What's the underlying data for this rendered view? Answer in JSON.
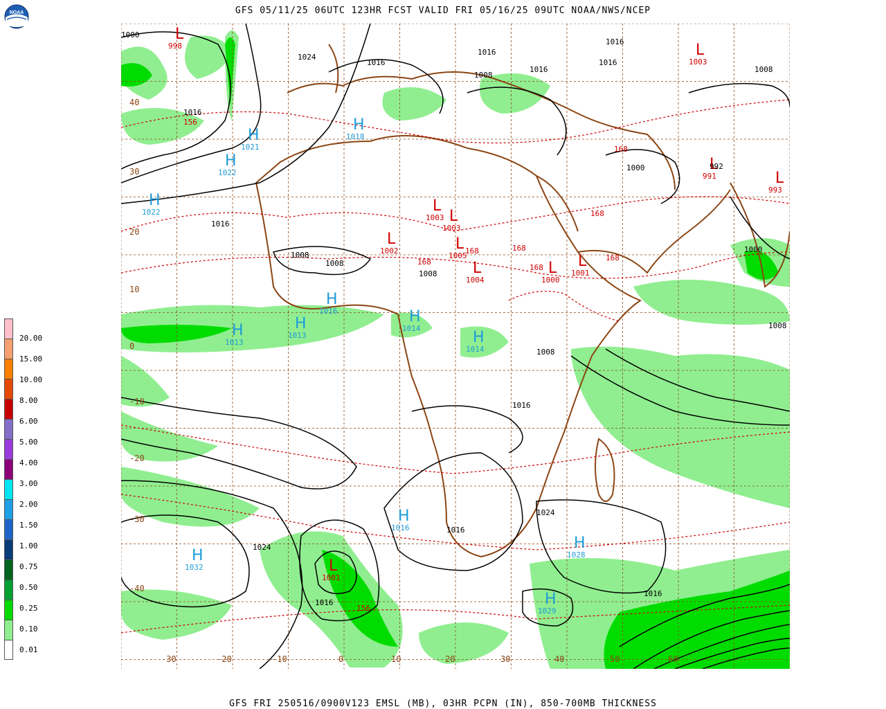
{
  "header": {
    "title": "GFS 05/11/25 06UTC 123HR FCST VALID FRI 05/16/25 09UTC NOAA/NWS/NCEP"
  },
  "footer": {
    "caption": "GFS FRI 250516/0900V123 EMSL (MB), 03HR PCPN (IN), 850-700MB THICKNESS"
  },
  "logo": {
    "text": "NOAA",
    "icon": "noaa-logo"
  },
  "legend": {
    "items": [
      {
        "label": "20.00",
        "color": "#ffc0cb"
      },
      {
        "label": "15.00",
        "color": "#f5a070"
      },
      {
        "label": "10.00",
        "color": "#ff7f00"
      },
      {
        "label": "8.00",
        "color": "#e64a00"
      },
      {
        "label": "6.00",
        "color": "#c80000"
      },
      {
        "label": "5.00",
        "color": "#8470c8"
      },
      {
        "label": "4.00",
        "color": "#9a3cdc"
      },
      {
        "label": "3.00",
        "color": "#8c0078"
      },
      {
        "label": "2.00",
        "color": "#00e6f0"
      },
      {
        "label": "1.50",
        "color": "#1ea0e6"
      },
      {
        "label": "1.00",
        "color": "#1e64c8"
      },
      {
        "label": "0.75",
        "color": "#0a3c78"
      },
      {
        "label": "0.50",
        "color": "#00641e"
      },
      {
        "label": "0.25",
        "color": "#00a032"
      },
      {
        "label": "0.10",
        "color": "#00dc00"
      },
      {
        "label": "0.01",
        "color": "#90ee90"
      },
      {
        "label": "",
        "color": "#ffffff"
      }
    ]
  },
  "map": {
    "lat_labels": [
      "40",
      "30",
      "20",
      "10",
      "0",
      "-10",
      "-20",
      "-30",
      "-40"
    ],
    "lon_labels": [
      "-30",
      "-20",
      "-10",
      "0",
      "10",
      "20",
      "30",
      "40",
      "50",
      "60"
    ],
    "highs": [
      {
        "label": "H",
        "value": "1021"
      },
      {
        "label": "H",
        "value": "1022"
      },
      {
        "label": "H",
        "value": "1022"
      },
      {
        "label": "H",
        "value": "1018"
      },
      {
        "label": "H",
        "value": "1013"
      },
      {
        "label": "H",
        "value": "1013"
      },
      {
        "label": "H",
        "value": "1014"
      },
      {
        "label": "H",
        "value": "1014"
      },
      {
        "label": "H",
        "value": "1016"
      },
      {
        "label": "H",
        "value": "1032"
      },
      {
        "label": "H",
        "value": "1028"
      },
      {
        "label": "H",
        "value": "1029"
      },
      {
        "label": "H",
        "value": "1016"
      }
    ],
    "lows": [
      {
        "label": "L",
        "value": "998"
      },
      {
        "label": "L",
        "value": "1002"
      },
      {
        "label": "L",
        "value": "1003"
      },
      {
        "label": "L",
        "value": "1005"
      },
      {
        "label": "L",
        "value": "1004"
      },
      {
        "label": "L",
        "value": "1000"
      },
      {
        "label": "L",
        "value": "1003"
      },
      {
        "label": "L",
        "value": "1001"
      },
      {
        "label": "L",
        "value": "991"
      },
      {
        "label": "L",
        "value": "993"
      },
      {
        "label": "L",
        "value": "1003"
      },
      {
        "label": "L",
        "value": "1001"
      }
    ],
    "isobar_labels": [
      "1000",
      "1024",
      "1016",
      "1016",
      "1016",
      "1008",
      "1008",
      "1008",
      "1016",
      "1016",
      "1016",
      "1024",
      "1024",
      "1016",
      "1008",
      "1008",
      "1000",
      "1008",
      "992",
      "1000",
      "1016",
      "1008",
      "1016",
      "1016",
      "1016"
    ],
    "thickness_labels": [
      "156",
      "168",
      "168",
      "168",
      "168",
      "168",
      "168",
      "168",
      "156"
    ]
  },
  "colors": {
    "isobar": "#000000",
    "thickness": "#d00000",
    "coast": "#8b4513",
    "grid": "#8b4513",
    "high": "#1e9bd7",
    "low": "#d00000",
    "precip_light": "#90ee90",
    "precip": "#00dc00"
  }
}
